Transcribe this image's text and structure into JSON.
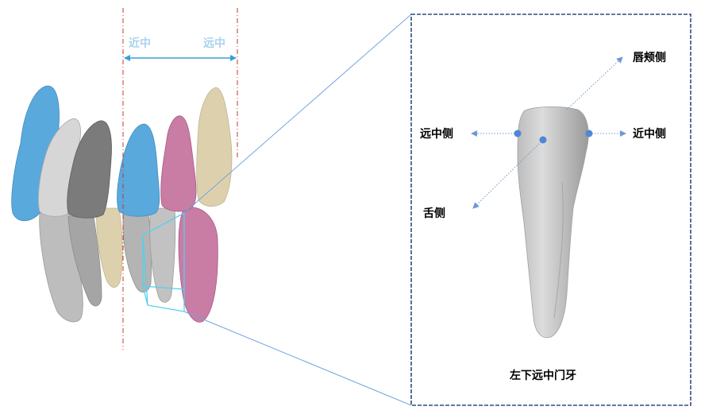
{
  "left_figure": {
    "label_mesial": "近中",
    "label_distal": "远中",
    "colors": {
      "blue": "#5aa9dd",
      "grey_light": "#cfcfcf",
      "grey_mid": "#a9a9a9",
      "grey_dark": "#7b7b7b",
      "beige": "#ddd1ad",
      "pink": "#c97ca4",
      "guide_red": "#c0392b",
      "label_blue": "#a8d4ee",
      "arrow_blue": "#3a9fd6",
      "highlight_cyan": "#55d0ee"
    }
  },
  "detail_panel": {
    "title": "左下远中门牙",
    "labels": {
      "labial_buccal": "唇颊侧",
      "distal": "远中侧",
      "mesial": "近中侧",
      "lingual": "舌侧"
    },
    "colors": {
      "frame": "#2f4e7c",
      "axis": "#6f98d6",
      "point": "#4f86d8",
      "connector": "#6ea2de"
    }
  }
}
